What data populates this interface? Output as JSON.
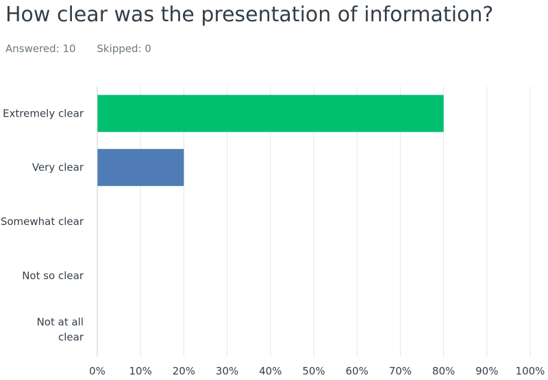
{
  "question": {
    "title": "How clear was the presentation of information?",
    "answered": "Answered: 10",
    "skipped": "Skipped: 0"
  },
  "chart_data": {
    "type": "bar",
    "orientation": "horizontal",
    "categories": [
      "Extremely clear",
      "Very clear",
      "Somewhat clear",
      "Not so clear",
      "Not at all clear"
    ],
    "category_lines": [
      [
        "Extremely clear"
      ],
      [
        "Very clear"
      ],
      [
        "Somewhat clear"
      ],
      [
        "Not so clear"
      ],
      [
        "Not at all",
        "clear"
      ]
    ],
    "values": [
      80,
      20,
      0,
      0,
      0
    ],
    "colors": [
      "#00bf6f",
      "#507cb6",
      "#f9be00",
      "#6bc8cd",
      "#ff8b4f"
    ],
    "xlim": [
      0,
      100
    ],
    "ticks": [
      "0%",
      "10%",
      "20%",
      "30%",
      "40%",
      "50%",
      "60%",
      "70%",
      "80%",
      "90%",
      "100%"
    ],
    "grid": true,
    "grid_color": "#e5e5e5"
  }
}
